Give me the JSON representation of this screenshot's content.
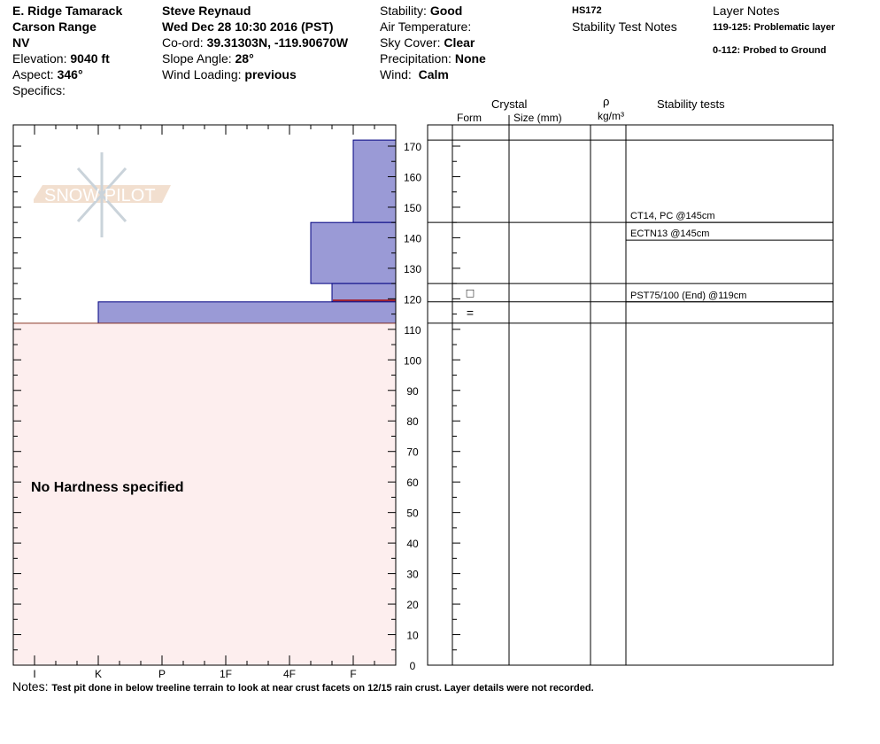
{
  "header": {
    "location": "E. Ridge Tamarack",
    "range": "Carson Range",
    "state": "NV",
    "elevation_label": "Elevation:",
    "elevation": "9040 ft",
    "aspect_label": "Aspect:",
    "aspect": "346°",
    "specifics_label": "Specifics:",
    "observer": "Steve Reynaud",
    "datetime": "Wed Dec 28 10:30 2016 (PST)",
    "coord_label": "Co-ord:",
    "coord": "39.31303N, -119.90670W",
    "slope_label": "Slope Angle:",
    "slope": "28°",
    "wind_loading_label": "Wind Loading:",
    "wind_loading": "previous",
    "stability_label": "Stability:",
    "stability": "Good",
    "air_temp_label": "Air Temperature:",
    "sky_label": "Sky Cover:",
    "sky": "Clear",
    "precip_label": "Precipitation:",
    "precip": "None",
    "wind_label": "Wind:",
    "wind": "Calm",
    "hs": "HS172",
    "stability_test_notes": "Stability Test Notes",
    "layer_notes_title": "Layer Notes",
    "layer_notes": [
      "119-125: Problematic layer",
      "0-112: Probed to Ground"
    ]
  },
  "table_headers": {
    "crystal": "Crystal",
    "form": "Form",
    "size": "Size (mm)",
    "rho": "ρ",
    "density_unit": "kg/m³",
    "stability_tests": "Stability tests"
  },
  "watermark": "SNOW PILOT",
  "no_hardness": "No Hardness specified",
  "notes_label": "Notes:",
  "notes": "Test pit done in below treeline terrain to look at near crust facets on 12/15 rain crust.  Layer details were not recorded.",
  "colors": {
    "layer_fill": "#9a9ad6",
    "layer_stroke": "#000080",
    "no_hardness_fill": "#fdeeee",
    "crust_line": "#a02030"
  },
  "chart_data": {
    "type": "bar",
    "ylabel": "",
    "ylim": [
      0,
      172
    ],
    "y_ticks": [
      0,
      10,
      20,
      30,
      40,
      50,
      60,
      70,
      80,
      90,
      100,
      110,
      120,
      130,
      140,
      150,
      160,
      170
    ],
    "hardness_scale": [
      "I",
      "K",
      "P",
      "1F",
      "4F",
      "F"
    ],
    "layers": [
      {
        "top": 172,
        "bottom": 145,
        "hardness": "F",
        "form": ""
      },
      {
        "top": 145,
        "bottom": 125,
        "hardness": "4F-",
        "form": ""
      },
      {
        "top": 125,
        "bottom": 119,
        "hardness": "F+",
        "form": "□"
      },
      {
        "top": 119,
        "bottom": 112,
        "hardness": "K",
        "form": "="
      },
      {
        "top": 112,
        "bottom": 0,
        "hardness": null,
        "form": ""
      }
    ],
    "stability_tests": [
      {
        "depth": 145,
        "text": "CT14, PC @145cm"
      },
      {
        "depth": 145,
        "text": "ECTN13 @145cm"
      },
      {
        "depth": 119,
        "text": "PST75/100 (End) @119cm"
      }
    ]
  }
}
